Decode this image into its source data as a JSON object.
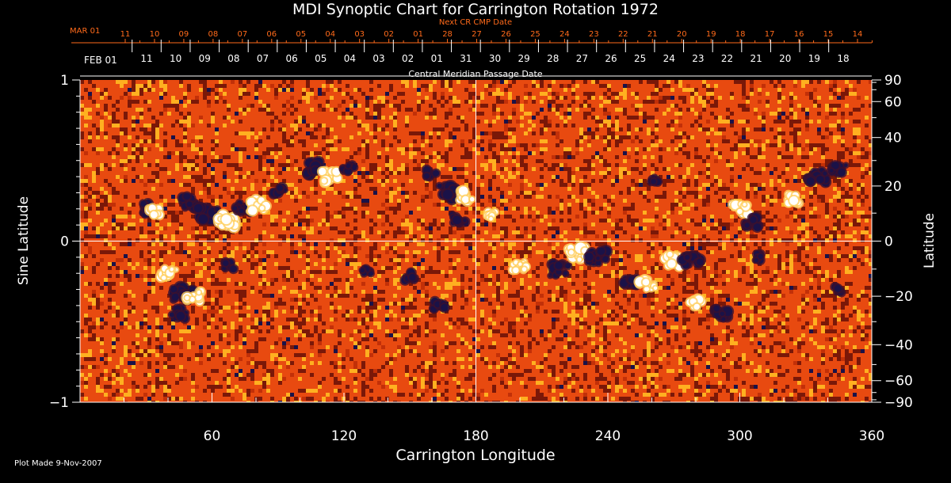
{
  "header": {
    "title": "MDI Synoptic Chart for Carrington Rotation 1972",
    "next_cr_label": "Next CR CMP Date",
    "cmp_label": "Central Meridian Passage Date",
    "footnote": "Plot Made  9-Nov-2007"
  },
  "colors": {
    "background": "#000000",
    "axes": "#ffffff",
    "next_dates": "#ff6a1a",
    "map_base": "#e84a10"
  },
  "chart_data": {
    "type": "heatmap",
    "title": "MDI Synoptic Chart for Carrington Rotation 1972",
    "xlabel": "Carrington Longitude",
    "ylabel_left": "Sine Latitude",
    "ylabel_right": "Latitude",
    "xlim": [
      0,
      360
    ],
    "ylim": [
      -1,
      1
    ],
    "x_major_ticks": [
      60,
      120,
      180,
      240,
      300,
      360
    ],
    "x_minor_step": 20,
    "y_left_ticks": [
      -1,
      0,
      1
    ],
    "y_right_ticks": [
      90,
      60,
      40,
      20,
      0,
      -20,
      -40,
      -60,
      -90
    ],
    "y_right_minor_ticks": [
      80,
      70,
      50,
      30,
      10,
      -10,
      -30,
      -50,
      -70,
      -80
    ],
    "crosshair": {
      "longitude": 180,
      "sine_latitude": 0
    },
    "top_scale_next": {
      "first_label": "MAR 01",
      "labels": [
        "11",
        "10",
        "09",
        "08",
        "07",
        "06",
        "05",
        "04",
        "03",
        "02",
        "01",
        "28",
        "27",
        "26",
        "25",
        "24",
        "23",
        "22",
        "21",
        "20",
        "19",
        "18",
        "17",
        "16",
        "15",
        "14"
      ]
    },
    "top_scale_cmp": {
      "first_label": "FEB 01",
      "labels": [
        "11",
        "10",
        "09",
        "08",
        "07",
        "06",
        "05",
        "04",
        "03",
        "02",
        "01",
        "31",
        "30",
        "29",
        "28",
        "27",
        "26",
        "25",
        "24",
        "23",
        "22",
        "21",
        "20",
        "19",
        "18"
      ]
    },
    "colormap": [
      "#1a1248",
      "#7a1808",
      "#e84a10",
      "#ffb020",
      "#ffffff"
    ],
    "active_regions": [
      {
        "lon": 30,
        "sinlat": 0.2,
        "polarity": "neg",
        "strength": 0.8
      },
      {
        "lon": 34,
        "sinlat": 0.18,
        "polarity": "pos",
        "strength": 0.6
      },
      {
        "lon": 50,
        "sinlat": 0.24,
        "polarity": "neg",
        "strength": 0.9
      },
      {
        "lon": 58,
        "sinlat": 0.17,
        "polarity": "neg",
        "strength": 1.0
      },
      {
        "lon": 67,
        "sinlat": 0.12,
        "polarity": "pos",
        "strength": 1.0
      },
      {
        "lon": 74,
        "sinlat": 0.2,
        "polarity": "neg",
        "strength": 0.8
      },
      {
        "lon": 81,
        "sinlat": 0.22,
        "polarity": "pos",
        "strength": 0.9
      },
      {
        "lon": 90,
        "sinlat": 0.32,
        "polarity": "neg",
        "strength": 0.7
      },
      {
        "lon": 105,
        "sinlat": 0.45,
        "polarity": "neg",
        "strength": 1.0
      },
      {
        "lon": 113,
        "sinlat": 0.4,
        "polarity": "pos",
        "strength": 0.9
      },
      {
        "lon": 122,
        "sinlat": 0.45,
        "polarity": "neg",
        "strength": 0.6
      },
      {
        "lon": 160,
        "sinlat": 0.42,
        "polarity": "neg",
        "strength": 0.6
      },
      {
        "lon": 168,
        "sinlat": 0.3,
        "polarity": "neg",
        "strength": 1.0
      },
      {
        "lon": 172,
        "sinlat": 0.14,
        "polarity": "neg",
        "strength": 0.7
      },
      {
        "lon": 176,
        "sinlat": 0.28,
        "polarity": "pos",
        "strength": 0.8
      },
      {
        "lon": 186,
        "sinlat": 0.16,
        "polarity": "pos",
        "strength": 0.6
      },
      {
        "lon": 262,
        "sinlat": 0.38,
        "polarity": "neg",
        "strength": 0.5
      },
      {
        "lon": 300,
        "sinlat": 0.2,
        "polarity": "pos",
        "strength": 0.8
      },
      {
        "lon": 305,
        "sinlat": 0.12,
        "polarity": "neg",
        "strength": 0.8
      },
      {
        "lon": 325,
        "sinlat": 0.26,
        "polarity": "pos",
        "strength": 0.7
      },
      {
        "lon": 335,
        "sinlat": 0.4,
        "polarity": "neg",
        "strength": 0.9
      },
      {
        "lon": 345,
        "sinlat": 0.44,
        "polarity": "neg",
        "strength": 0.7
      },
      {
        "lon": 40,
        "sinlat": -0.2,
        "polarity": "pos",
        "strength": 0.8
      },
      {
        "lon": 47,
        "sinlat": -0.33,
        "polarity": "neg",
        "strength": 1.0
      },
      {
        "lon": 52,
        "sinlat": -0.34,
        "polarity": "pos",
        "strength": 0.8
      },
      {
        "lon": 45,
        "sinlat": -0.45,
        "polarity": "neg",
        "strength": 0.7
      },
      {
        "lon": 68,
        "sinlat": -0.15,
        "polarity": "neg",
        "strength": 0.6
      },
      {
        "lon": 130,
        "sinlat": -0.18,
        "polarity": "neg",
        "strength": 0.5
      },
      {
        "lon": 150,
        "sinlat": -0.22,
        "polarity": "neg",
        "strength": 0.6
      },
      {
        "lon": 163,
        "sinlat": -0.4,
        "polarity": "neg",
        "strength": 0.6
      },
      {
        "lon": 200,
        "sinlat": -0.15,
        "polarity": "pos",
        "strength": 0.7
      },
      {
        "lon": 218,
        "sinlat": -0.18,
        "polarity": "neg",
        "strength": 0.9
      },
      {
        "lon": 226,
        "sinlat": -0.08,
        "polarity": "pos",
        "strength": 1.0
      },
      {
        "lon": 235,
        "sinlat": -0.1,
        "polarity": "neg",
        "strength": 1.0
      },
      {
        "lon": 250,
        "sinlat": -0.25,
        "polarity": "neg",
        "strength": 0.7
      },
      {
        "lon": 258,
        "sinlat": -0.27,
        "polarity": "pos",
        "strength": 0.8
      },
      {
        "lon": 270,
        "sinlat": -0.12,
        "polarity": "pos",
        "strength": 0.9
      },
      {
        "lon": 278,
        "sinlat": -0.12,
        "polarity": "neg",
        "strength": 0.9
      },
      {
        "lon": 280,
        "sinlat": -0.38,
        "polarity": "pos",
        "strength": 0.7
      },
      {
        "lon": 292,
        "sinlat": -0.45,
        "polarity": "neg",
        "strength": 0.8
      },
      {
        "lon": 308,
        "sinlat": -0.1,
        "polarity": "neg",
        "strength": 0.5
      },
      {
        "lon": 345,
        "sinlat": -0.3,
        "polarity": "neg",
        "strength": 0.5
      }
    ]
  }
}
